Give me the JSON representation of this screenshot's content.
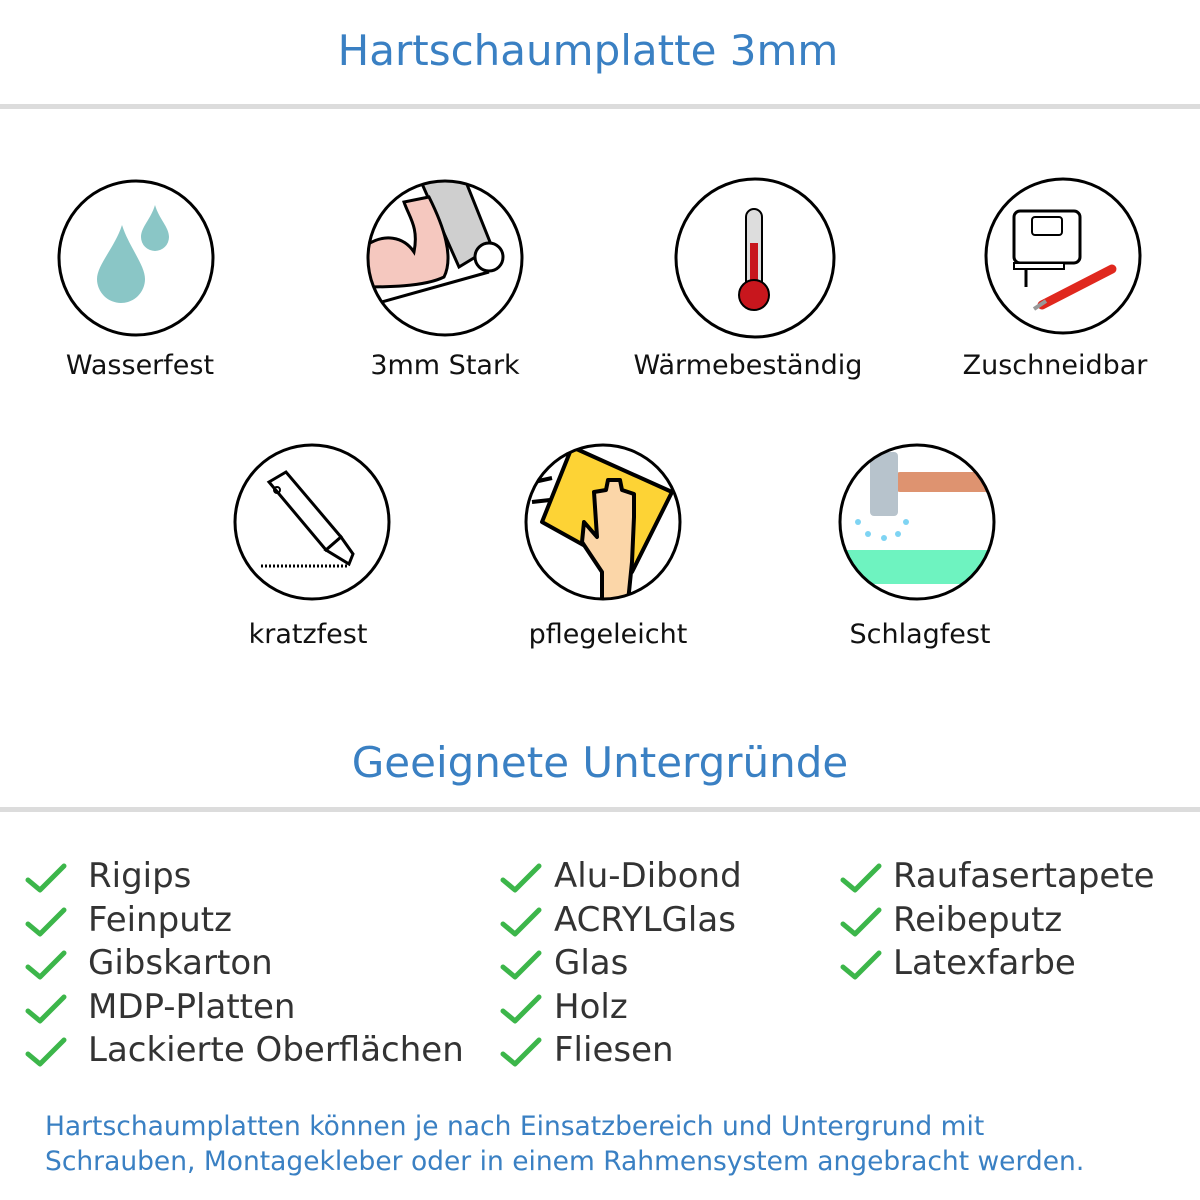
{
  "header": {
    "title": "Hartschaumplatte 3mm"
  },
  "features": [
    {
      "label": "Wasserfest",
      "icon": "water-drops-icon"
    },
    {
      "label": "3mm Stark",
      "icon": "strong-arm-icon"
    },
    {
      "label": "Wärmebeständig",
      "icon": "thermometer-icon"
    },
    {
      "label": "Zuschneidbar",
      "icon": "jigsaw-cutter-icon"
    },
    {
      "label": "kratzfest",
      "icon": "utility-knife-icon"
    },
    {
      "label": "pflegeleicht",
      "icon": "hand-sponge-icon"
    },
    {
      "label": "Schlagfest",
      "icon": "hammer-icon"
    }
  ],
  "surfaces": {
    "title": "Geeignete Untergründe",
    "columns": [
      [
        "Rigips",
        "Feinputz",
        "Gibskarton",
        "MDP-Platten",
        "Lackierte Oberflächen"
      ],
      [
        "Alu-Dibond",
        "ACRYLGlas",
        "Glas",
        "Holz",
        "Fliesen"
      ],
      [
        "Raufasertapete",
        "Reibeputz",
        "Latexfarbe"
      ]
    ]
  },
  "footer": {
    "line1": "Hartschaumplatten können je nach Einsatzbereich und Untergrund mit",
    "line2": "Schrauben, Montagekleber oder in einem Rahmensystem angebracht werden."
  },
  "colors": {
    "accent": "#3a80c3",
    "check": "#3cb64a",
    "divider": "#dcdcdc"
  }
}
